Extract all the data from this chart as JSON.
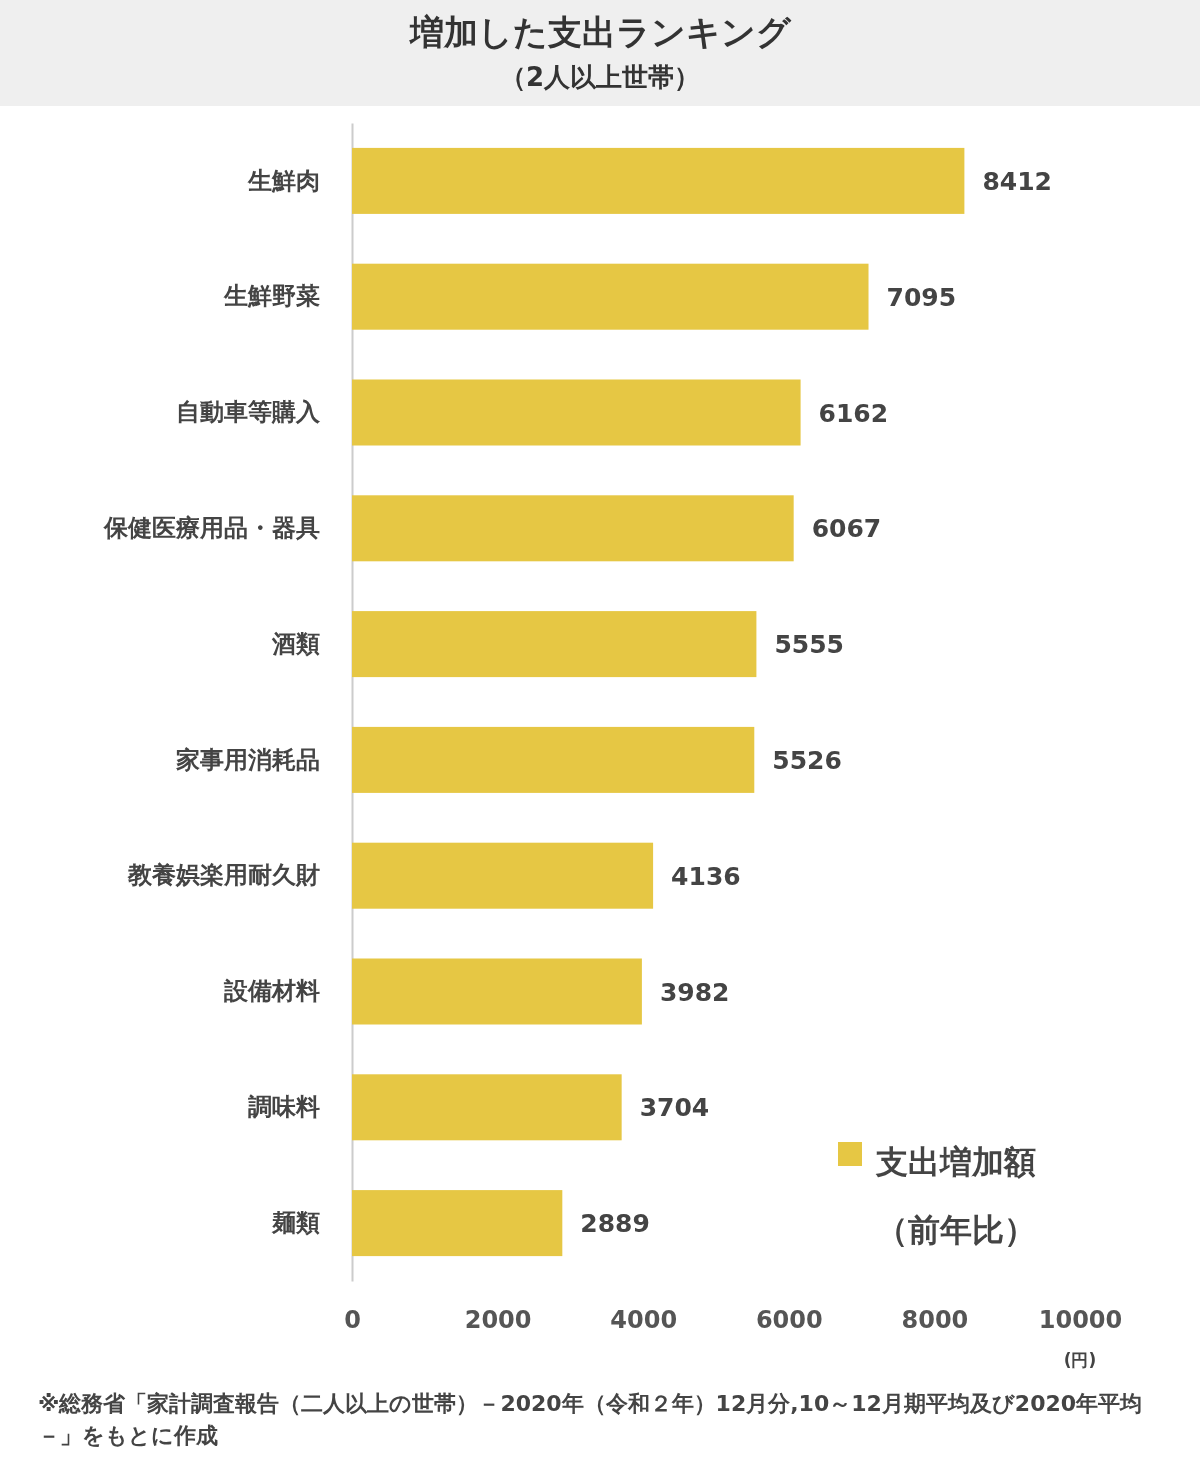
{
  "chart_data": {
    "type": "bar",
    "orientation": "horizontal",
    "title": "増加した支出ランキング",
    "subtitle": "（2人以上世帯）",
    "xlabel": "(円)",
    "categories": [
      "生鮮肉",
      "生鮮野菜",
      "自動車等購入",
      "保健医療用品・器具",
      "酒類",
      "家事用消耗品",
      "教養娯楽用耐久財",
      "設備材料",
      "調味料",
      "麺類"
    ],
    "series": [
      {
        "name": "支出増加額（前年比）",
        "color": "#e6c744",
        "values": [
          8412,
          7095,
          6162,
          6067,
          5555,
          5526,
          4136,
          3982,
          3704,
          2889
        ]
      }
    ],
    "xlim": [
      0,
      10000
    ],
    "xticks": [
      0,
      2000,
      4000,
      6000,
      8000,
      10000
    ],
    "grid": false,
    "legend": "bottom right",
    "data_labels": true,
    "annotations": [
      "※総務省「家計調査報告（二人以上の世帯）－2020年（令和２年）12月分,10～12月期平均及び2020年平均－」をもとに作成"
    ]
  }
}
